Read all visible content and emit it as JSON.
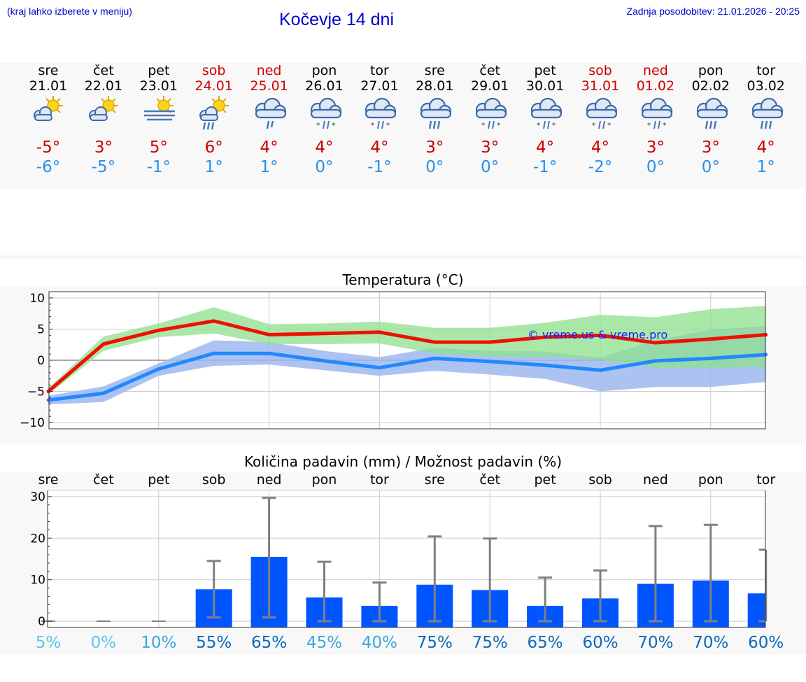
{
  "header": {
    "hint": "(kraj lahko izberete v meniju)",
    "title": "Kočevje 14 dni",
    "updated": "Zadnja posodobitev: 21.01.2026 - 20:25"
  },
  "days": [
    {
      "name": "sre",
      "date": "21.01",
      "weekend": false,
      "icon": "partly-cloudy-sun-icon",
      "tmax": "-5°",
      "tmin": "-6°"
    },
    {
      "name": "čet",
      "date": "22.01",
      "weekend": false,
      "icon": "partly-cloudy-sun-icon",
      "tmax": "3°",
      "tmin": "-5°"
    },
    {
      "name": "pet",
      "date": "23.01",
      "weekend": false,
      "icon": "sun-fog-icon",
      "tmax": "5°",
      "tmin": "-1°"
    },
    {
      "name": "sob",
      "date": "24.01",
      "weekend": true,
      "icon": "sun-rain-showers-icon",
      "tmax": "6°",
      "tmin": "1°"
    },
    {
      "name": "ned",
      "date": "25.01",
      "weekend": true,
      "icon": "cloud-light-rain-icon",
      "tmax": "4°",
      "tmin": "1°"
    },
    {
      "name": "pon",
      "date": "26.01",
      "weekend": false,
      "icon": "cloud-sleet-icon",
      "tmax": "4°",
      "tmin": "0°"
    },
    {
      "name": "tor",
      "date": "27.01",
      "weekend": false,
      "icon": "cloud-sleet-icon",
      "tmax": "4°",
      "tmin": "-1°"
    },
    {
      "name": "sre",
      "date": "28.01",
      "weekend": false,
      "icon": "cloud-rain-icon",
      "tmax": "3°",
      "tmin": "0°"
    },
    {
      "name": "čet",
      "date": "29.01",
      "weekend": false,
      "icon": "cloud-sleet-icon",
      "tmax": "3°",
      "tmin": "0°"
    },
    {
      "name": "pet",
      "date": "30.01",
      "weekend": false,
      "icon": "cloud-sleet-icon",
      "tmax": "4°",
      "tmin": "-1°"
    },
    {
      "name": "sob",
      "date": "31.01",
      "weekend": true,
      "icon": "cloud-sleet-icon",
      "tmax": "4°",
      "tmin": "-2°"
    },
    {
      "name": "ned",
      "date": "01.02",
      "weekend": true,
      "icon": "cloud-sleet-icon",
      "tmax": "3°",
      "tmin": "0°"
    },
    {
      "name": "pon",
      "date": "02.02",
      "weekend": false,
      "icon": "cloud-rain-icon",
      "tmax": "3°",
      "tmin": "0°"
    },
    {
      "name": "tor",
      "date": "03.02",
      "weekend": false,
      "icon": "cloud-rain-icon",
      "tmax": "4°",
      "tmin": "1°"
    }
  ],
  "colors": {
    "max": "#ee1100",
    "min": "#2288ff",
    "max_band": "#8ee08e",
    "min_band": "#9db8f0",
    "bar": "#0055ff",
    "whisker": "#808080",
    "weekend": "#cc0000"
  },
  "chart_data": [
    {
      "type": "line",
      "title": "Temperatura (°C)",
      "ylim": [
        -11,
        11
      ],
      "yticks": [
        10,
        5,
        0,
        -5,
        -10
      ],
      "grid": true,
      "watermark": "© vreme.us & vreme.pro",
      "series": [
        {
          "name": "max",
          "x": [
            0,
            1,
            2,
            3,
            4,
            5,
            6,
            7,
            8,
            9,
            10,
            11,
            12,
            13
          ],
          "values": [
            -5,
            2.6,
            4.8,
            6.3,
            4.1,
            4.3,
            4.5,
            2.9,
            2.9,
            3.7,
            4.0,
            2.8,
            3.4,
            4.1
          ],
          "band_high": [
            -4.5,
            3.8,
            5.9,
            8.5,
            5.8,
            5.9,
            6.2,
            5.2,
            5.2,
            6.0,
            7.3,
            6.9,
            8.2,
            8.7
          ],
          "band_low": [
            -5.5,
            1.5,
            3.7,
            4.3,
            2.6,
            2.6,
            2.7,
            1.1,
            0.6,
            0.5,
            0.1,
            -1.2,
            -1.2,
            -1.1
          ]
        },
        {
          "name": "min",
          "x": [
            0,
            1,
            2,
            3,
            4,
            5,
            6,
            7,
            8,
            9,
            10,
            11,
            12,
            13
          ],
          "values": [
            -6.4,
            -5.3,
            -1.4,
            1.1,
            1.1,
            -0.1,
            -1.2,
            0.3,
            -0.2,
            -0.8,
            -1.6,
            -0.1,
            0.3,
            0.9
          ],
          "band_high": [
            -5.7,
            -4.2,
            -0.5,
            3.2,
            2.9,
            1.5,
            0.5,
            2.0,
            1.5,
            1.4,
            0.4,
            3.2,
            4.9,
            5.5
          ],
          "band_low": [
            -7.1,
            -6.7,
            -2.5,
            -0.9,
            -0.7,
            -1.6,
            -2.5,
            -1.7,
            -2.3,
            -3.0,
            -5.0,
            -4.3,
            -4.3,
            -3.5
          ]
        }
      ]
    },
    {
      "type": "bar",
      "title": "Količina padavin (mm) / Možnost padavin (%)",
      "categories": [
        "sre",
        "čet",
        "pet",
        "sob",
        "ned",
        "pon",
        "tor",
        "sre",
        "čet",
        "pet",
        "sob",
        "ned",
        "pon",
        "tor"
      ],
      "ylim": [
        -1.5,
        31.5
      ],
      "yticks": [
        30,
        20,
        10,
        0
      ],
      "values": [
        0,
        0,
        0,
        7.7,
        15.5,
        5.7,
        3.7,
        8.8,
        7.5,
        3.7,
        5.5,
        9,
        9.8,
        6.7
      ],
      "err_low": [
        0,
        0,
        0,
        0.9,
        0.9,
        0,
        0,
        0,
        0,
        0,
        0,
        0,
        0,
        0
      ],
      "err_high": [
        0,
        0,
        0,
        14.5,
        29.7,
        14.3,
        9.3,
        20.4,
        19.9,
        10.5,
        12.2,
        22.9,
        23.2,
        17.2
      ],
      "probability": [
        "5%",
        "0%",
        "10%",
        "55%",
        "65%",
        "45%",
        "40%",
        "75%",
        "75%",
        "65%",
        "60%",
        "70%",
        "70%",
        "60%"
      ],
      "probability_colors": [
        "#5bc8e8",
        "#5bc8e8",
        "#3aa8e0",
        "#0a68b8",
        "#0a68b8",
        "#3aa8e0",
        "#3aa8e0",
        "#0a68b8",
        "#0a68b8",
        "#0a68b8",
        "#0a68b8",
        "#0a68b8",
        "#0a68b8",
        "#0a68b8"
      ]
    }
  ]
}
